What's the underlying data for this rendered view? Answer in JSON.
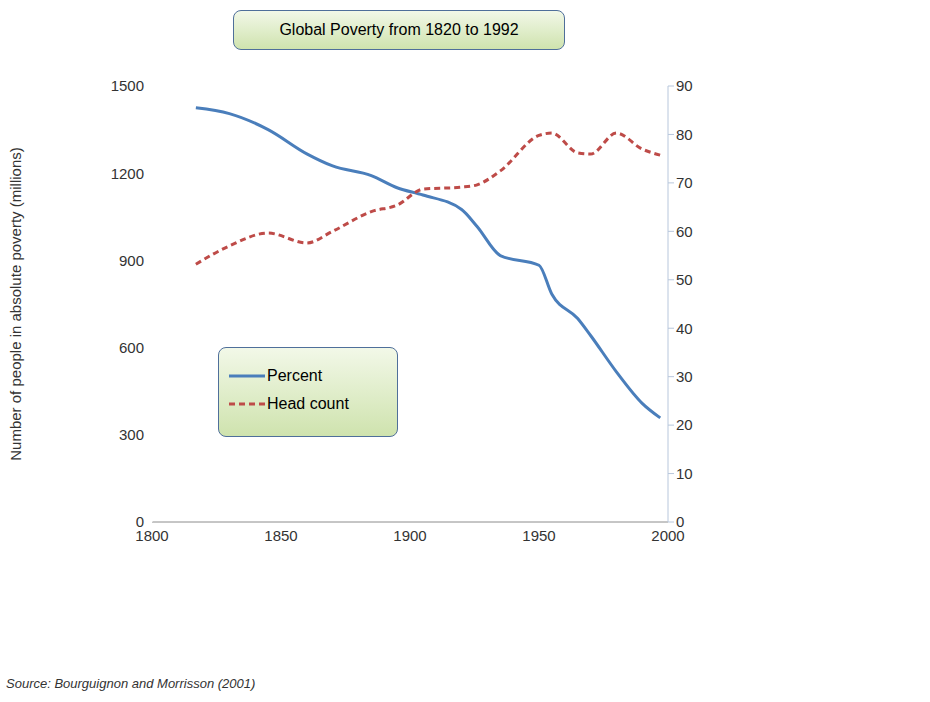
{
  "chart_data": {
    "type": "line",
    "title": "Global Poverty from 1820 to 1992",
    "x": [
      1817,
      1830,
      1845,
      1860,
      1870,
      1885,
      1895,
      1905,
      1920,
      1926,
      1935,
      1950,
      1955,
      1965,
      1970,
      1980,
      1990,
      1997
    ],
    "xlim": [
      1800,
      2000
    ],
    "xticks": [
      1800,
      1850,
      1900,
      1950,
      2000
    ],
    "y_label": "Number of people in absolute poverty (millions)",
    "ylim": [
      0,
      1500
    ],
    "yticks": [
      0,
      300,
      600,
      900,
      1200,
      1500
    ],
    "y2lim": [
      0,
      90
    ],
    "y2ticks": [
      0,
      10,
      20,
      30,
      40,
      50,
      60,
      70,
      80,
      90
    ],
    "series": [
      {
        "name": "Percent",
        "color": "#4a7ebb",
        "axis": "y2",
        "line_style": "solid",
        "values": [
          85.5,
          84.3,
          81,
          76,
          73.5,
          71.5,
          69,
          67.5,
          64.5,
          61,
          55,
          53,
          47,
          42,
          38.5,
          31,
          24.5,
          21.5
        ]
      },
      {
        "name": "Head count",
        "color": "#be4b48",
        "line_style": "dashed",
        "values": [
          887,
          950,
          994,
          960,
          1000,
          1068,
          1090,
          1145,
          1152,
          1160,
          1208,
          1330,
          1338,
          1270,
          1266,
          1338,
          1283,
          1262
        ]
      }
    ],
    "legend": "lower left",
    "grid": false,
    "source": "Source: Bourguignon and Morrisson (2001)"
  }
}
